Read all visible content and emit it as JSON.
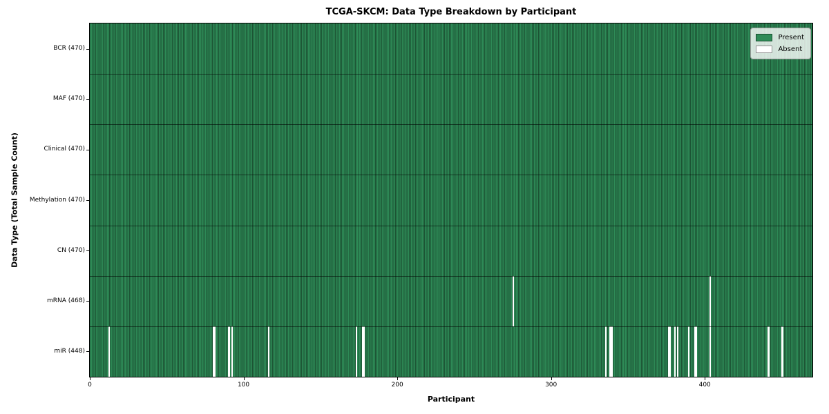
{
  "title": "TCGA-SKCM: Data Type Breakdown by Participant",
  "axes": {
    "xlabel": "Participant",
    "ylabel": "Data Type (Total Sample Count)"
  },
  "legend": {
    "items": [
      {
        "label": "Present",
        "color": "#2e8b57"
      },
      {
        "label": "Absent",
        "color": "#ffffff"
      }
    ],
    "position": "upper right"
  },
  "colors": {
    "present_fill": "#2e8b57",
    "present_stripe_edge": "#1c5434",
    "absent_fill": "#ffffff",
    "row_boundary": "rgba(0,0,0,0.55)",
    "axis_spine": "#000000"
  },
  "chart_data": {
    "type": "heatmap",
    "title": "TCGA-SKCM: Data Type Breakdown by Participant",
    "xlabel": "Participant",
    "ylabel": "Data Type (Total Sample Count)",
    "x_ticks": [
      0,
      100,
      200,
      300,
      400
    ],
    "x_range": [
      0,
      470
    ],
    "n_participants": 470,
    "legend_entries": [
      "Present",
      "Absent"
    ],
    "legend_position": "upper right",
    "grid": false,
    "rows": [
      {
        "label": "BCR (470)",
        "data_type": "BCR",
        "total_samples": 470,
        "absent_participants": []
      },
      {
        "label": "MAF (470)",
        "data_type": "MAF",
        "total_samples": 470,
        "absent_participants": []
      },
      {
        "label": "Clinical (470)",
        "data_type": "Clinical",
        "total_samples": 470,
        "absent_participants": []
      },
      {
        "label": "Methylation (470)",
        "data_type": "Methylation",
        "total_samples": 470,
        "absent_participants": []
      },
      {
        "label": "CN (470)",
        "data_type": "CN",
        "total_samples": 470,
        "absent_participants": []
      },
      {
        "label": "mRNA (468)",
        "data_type": "mRNA",
        "total_samples": 468,
        "absent_participants": [
          275,
          403
        ]
      },
      {
        "label": "miR (448)",
        "data_type": "miR",
        "total_samples": 448,
        "absent_participants": [
          12,
          80,
          81,
          90,
          92,
          116,
          173,
          177,
          178,
          335,
          338,
          339,
          376,
          377,
          380,
          382,
          389,
          393,
          394,
          403,
          441,
          450
        ]
      }
    ]
  }
}
